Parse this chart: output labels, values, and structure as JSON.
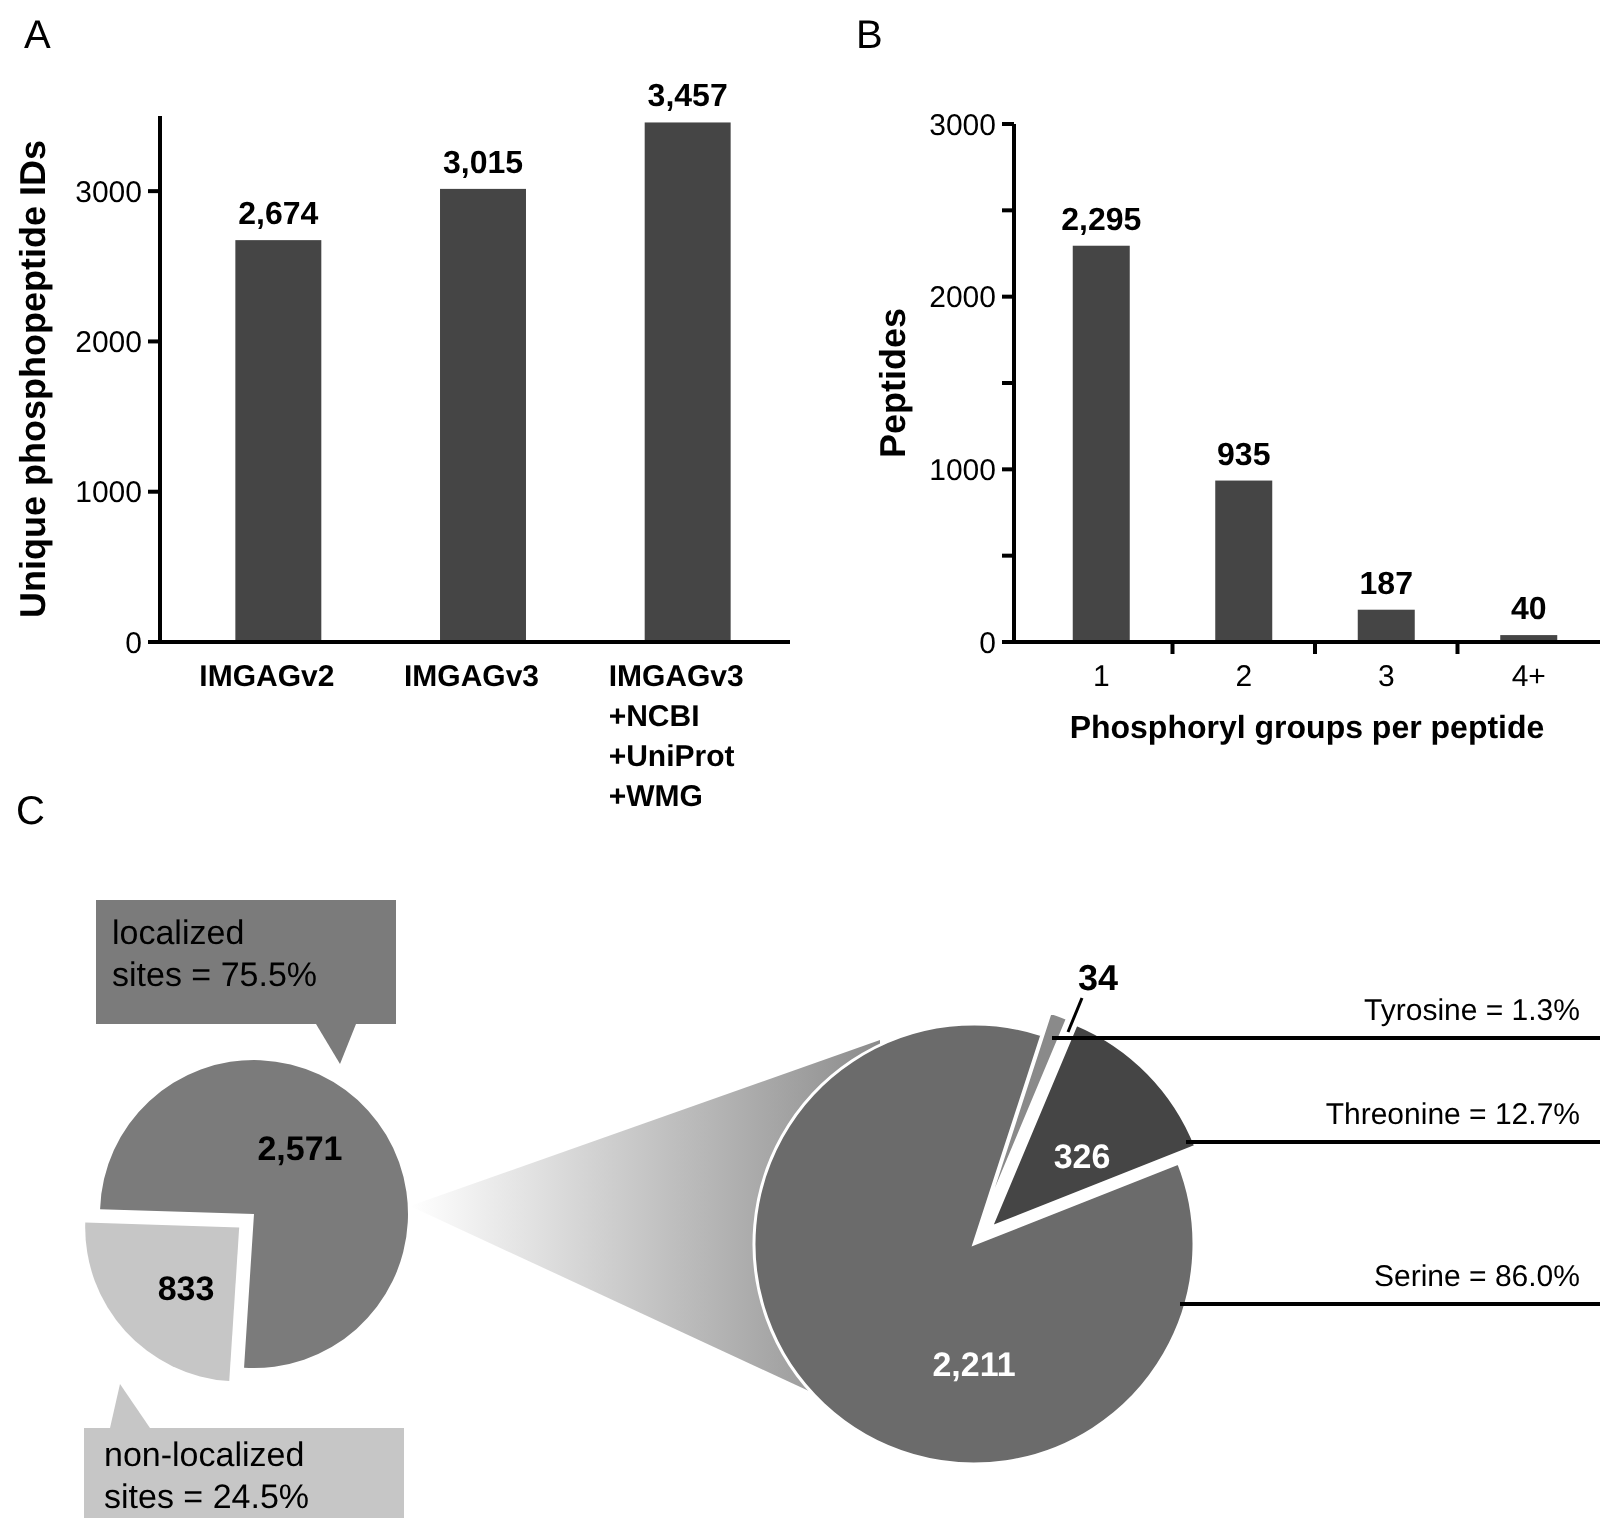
{
  "chart_data": [
    {
      "type": "bar",
      "title": "A",
      "ylabel": "Unique phosphopeptide IDs",
      "categories": [
        "IMGAGv2",
        "IMGAGv3",
        "IMGAGv3\n+NCBI\n+UniProt\n+WMG"
      ],
      "values": [
        2674,
        3015,
        3457
      ],
      "color": "#454545",
      "value_labels": [
        "2,674",
        "3,015",
        "3,457"
      ],
      "ylim": [
        0,
        3500
      ],
      "yticks": [
        0,
        1000,
        2000,
        3000
      ],
      "grid": false
    },
    {
      "type": "bar",
      "title": "B",
      "xlabel": "Phosphoryl groups per peptide",
      "ylabel": "Peptides",
      "categories": [
        "1",
        "2",
        "3",
        "4+"
      ],
      "values": [
        2295,
        935,
        187,
        40
      ],
      "color": "#454545",
      "value_labels": [
        "2,295",
        "935",
        "187",
        "40"
      ],
      "ylim": [
        0,
        3000
      ],
      "yticks": [
        0,
        {
          "value": 500,
          "label": null
        },
        1000,
        {
          "value": 1500,
          "label": null
        },
        2000,
        {
          "value": 2500,
          "label": null
        },
        3000
      ],
      "grid": false
    },
    {
      "type": "pie",
      "title": "C",
      "categories": [
        "localized sites = 75.5%",
        "non-localized sites = 24.5%"
      ],
      "values": [
        2571,
        833
      ],
      "colors": [
        "#7b7b7b",
        "#c6c6c6"
      ],
      "value_labels": [
        "2,571",
        "833"
      ],
      "legend": "left"
    },
    {
      "type": "pie",
      "categories": [
        "Tyrosine = 1.3%",
        "Threonine = 12.7%",
        "Serine = 86.0%"
      ],
      "values": [
        34,
        326,
        2211
      ],
      "colors": [
        "#8a8a8a",
        "#454545",
        "#6b6b6b"
      ],
      "value_labels": [
        "34",
        "326",
        "2,211"
      ]
    }
  ]
}
